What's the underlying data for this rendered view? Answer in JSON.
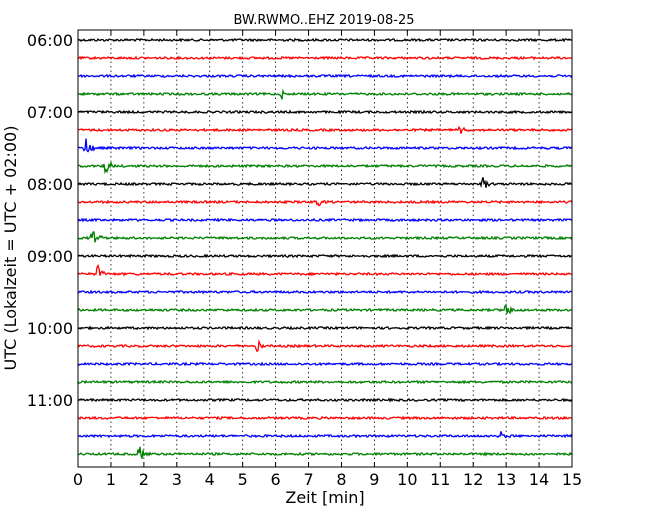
{
  "chart_data": {
    "type": "line",
    "title": "BW.RWMO..EHZ 2019-08-25",
    "xlabel": "Zeit  [min]",
    "ylabel": "UTC (Lokalzeit = UTC + 02:00)",
    "xlim": [
      0,
      15
    ],
    "x_ticks": [
      "0",
      "1",
      "2",
      "3",
      "4",
      "5",
      "6",
      "7",
      "8",
      "9",
      "10",
      "11",
      "12",
      "13",
      "14",
      "15"
    ],
    "y_tick_labels": [
      "06:00",
      "07:00",
      "08:00",
      "09:00",
      "10:00",
      "11:00"
    ],
    "grid": "vertical-dotted",
    "colors": [
      "#000000",
      "#ff0000",
      "#0000ff",
      "#008000"
    ],
    "traces": [
      {
        "start": "06:00",
        "events": []
      },
      {
        "start": "06:15",
        "events": []
      },
      {
        "start": "06:30",
        "events": []
      },
      {
        "start": "06:45",
        "events": [
          {
            "t": 6.2,
            "amp": 0.3
          }
        ]
      },
      {
        "start": "07:00",
        "events": []
      },
      {
        "start": "07:15",
        "events": [
          {
            "t": 11.6,
            "amp": 0.35
          }
        ]
      },
      {
        "start": "07:30",
        "events": [
          {
            "t": 0.25,
            "amp": 0.7
          }
        ]
      },
      {
        "start": "07:45",
        "events": [
          {
            "t": 0.85,
            "amp": 0.55
          }
        ]
      },
      {
        "start": "08:00",
        "events": [
          {
            "t": 12.3,
            "amp": 0.45
          }
        ]
      },
      {
        "start": "08:15",
        "events": [
          {
            "t": 7.3,
            "amp": 0.25
          }
        ]
      },
      {
        "start": "08:30",
        "events": []
      },
      {
        "start": "08:45",
        "events": [
          {
            "t": 0.45,
            "amp": 0.75
          }
        ]
      },
      {
        "start": "09:00",
        "events": []
      },
      {
        "start": "09:15",
        "events": [
          {
            "t": 0.6,
            "amp": 0.5
          }
        ]
      },
      {
        "start": "09:30",
        "events": []
      },
      {
        "start": "09:45",
        "events": [
          {
            "t": 13.0,
            "amp": 0.5
          }
        ]
      },
      {
        "start": "10:00",
        "events": []
      },
      {
        "start": "10:15",
        "events": [
          {
            "t": 5.4,
            "amp": 0.55
          }
        ]
      },
      {
        "start": "10:30",
        "events": []
      },
      {
        "start": "10:45",
        "events": []
      },
      {
        "start": "11:00",
        "events": []
      },
      {
        "start": "11:15",
        "events": []
      },
      {
        "start": "11:30",
        "events": [
          {
            "t": 12.8,
            "amp": 0.35
          }
        ]
      },
      {
        "start": "11:45",
        "events": [
          {
            "t": 1.85,
            "amp": 0.65
          }
        ]
      }
    ]
  }
}
